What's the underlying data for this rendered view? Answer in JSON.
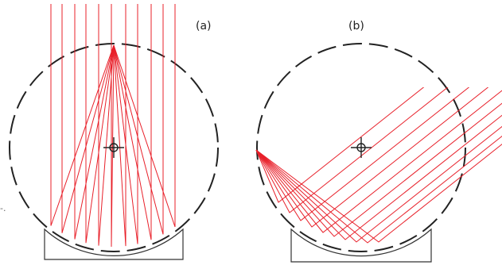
{
  "panels": [
    {
      "id": "a",
      "label": "(a)"
    },
    {
      "id": "b",
      "label": "(b)"
    }
  ],
  "stray_mark": "-.",
  "colors": {
    "ray": "#e8202a",
    "outline": "#222222",
    "background": "#ffffff"
  }
}
